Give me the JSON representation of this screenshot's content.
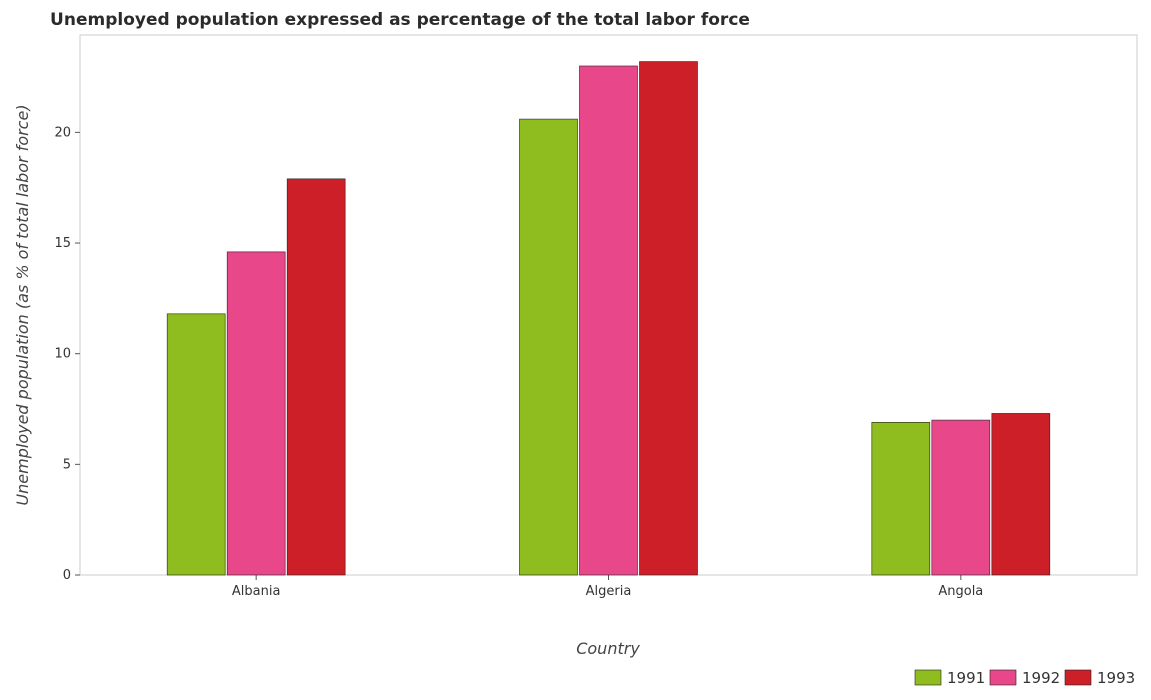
{
  "chart_data": {
    "type": "bar",
    "title": "Unemployed population expressed as percentage of the total labor force",
    "xlabel": "Country",
    "ylabel": "Unemployed population (as % of total labor force)",
    "categories": [
      "Albania",
      "Algeria",
      "Angola"
    ],
    "series": [
      {
        "name": "1991",
        "color": "#8fbc1f",
        "values": [
          11.8,
          20.6,
          6.9
        ]
      },
      {
        "name": "1992",
        "color": "#e8488a",
        "values": [
          14.6,
          23.0,
          7.0
        ]
      },
      {
        "name": "1993",
        "color": "#cc1f28",
        "values": [
          17.9,
          23.2,
          7.3
        ]
      }
    ],
    "ylim": [
      0,
      24.4
    ],
    "yticks": [
      0,
      5,
      10,
      15,
      20
    ],
    "grid": false,
    "legend_position": "bottom-right"
  }
}
